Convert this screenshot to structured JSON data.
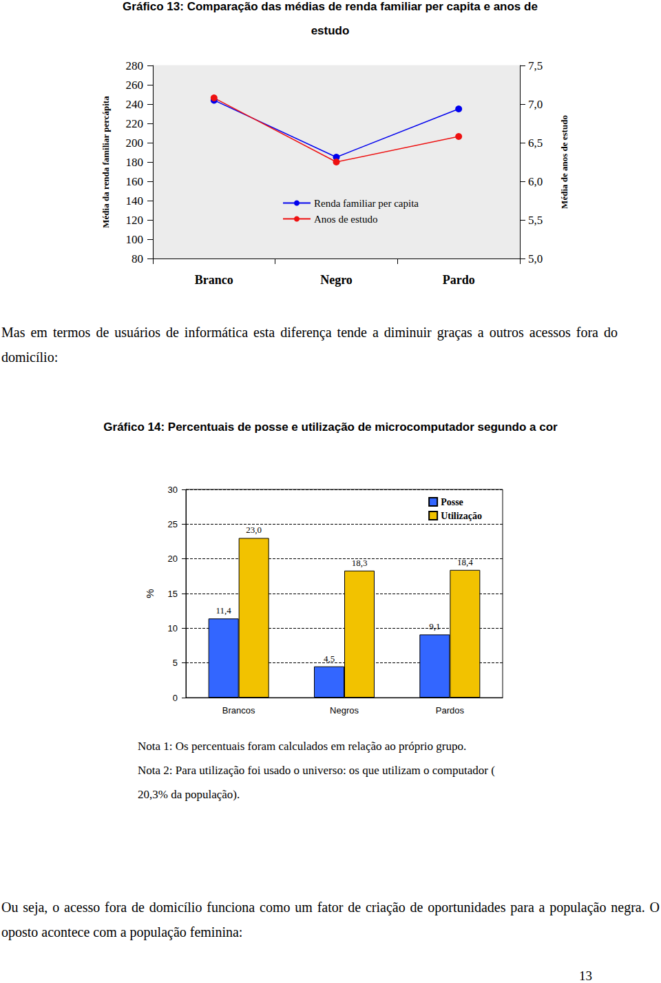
{
  "chart_data": [
    {
      "type": "line",
      "title": "Gráfico 13: Comparação das médias de renda familiar per capita e anos de estudo",
      "categories": [
        "Branco",
        "Negro",
        "Pardo"
      ],
      "ylabel": "Média da renda familiar percápita",
      "y2label": "Média de anos de estudo",
      "ylim": [
        80,
        280
      ],
      "yticks": [
        80,
        100,
        120,
        140,
        160,
        180,
        200,
        220,
        240,
        260,
        280
      ],
      "y2lim": [
        5,
        7.5
      ],
      "y2ticks": [
        {
          "value": 5,
          "label": "5,0"
        },
        {
          "value": 5.5,
          "label": "5,5"
        },
        {
          "value": 6,
          "label": "6,0"
        },
        {
          "value": 6.5,
          "label": "6,5"
        },
        {
          "value": 7,
          "label": "7,0"
        },
        {
          "value": 7.5,
          "label": "7,5"
        }
      ],
      "series": [
        {
          "name": "Renda familiar per capita",
          "color": "#0000ee",
          "marker": "circle",
          "values": [
            244,
            185,
            235
          ]
        },
        {
          "name": "Anos de estudo",
          "color": "#ee1111",
          "marker": "circle",
          "axis": "y2",
          "values": [
            7.08,
            6.25,
            6.58
          ]
        }
      ],
      "grid": false,
      "legend": "center"
    },
    {
      "type": "bar",
      "title": "Gráfico 14: Percentuais de posse e utilização de microcomputador segundo a cor",
      "categories": [
        "Brancos",
        "Negros",
        "Pardos"
      ],
      "ylabel": "%",
      "ylim": [
        0,
        30
      ],
      "yticks": [
        0,
        5,
        10,
        15,
        20,
        25,
        30
      ],
      "series": [
        {
          "name": "Posse",
          "color": "#3366ff",
          "values": [
            11.4,
            4.5,
            9.1
          ],
          "value_labels": [
            "11,4",
            "4,5",
            "9,1"
          ]
        },
        {
          "name": "Utilização",
          "color": "#f2c200",
          "values": [
            23.0,
            18.3,
            18.4
          ],
          "value_labels": [
            "23,0",
            "18,3",
            "18,4"
          ]
        }
      ],
      "data_labels": true,
      "grid": true,
      "legend": "upper right"
    }
  ],
  "text": {
    "paragraph_1": "Mas em termos de usuários de informática esta diferença tende a diminuir graças a outros acessos fora do domicílio:",
    "notes": [
      "Nota 1: Os percentuais foram calculados em relação ao próprio grupo.",
      "Nota 2: Para utilização foi usado o universo: os que utilizam o computador ( 20,3% da população)."
    ],
    "paragraph_2": "Ou seja, o acesso fora de domicílio funciona como um  fator de criação de oportunidades para a população negra. O oposto acontece com a população feminina:",
    "page_number": "13"
  }
}
